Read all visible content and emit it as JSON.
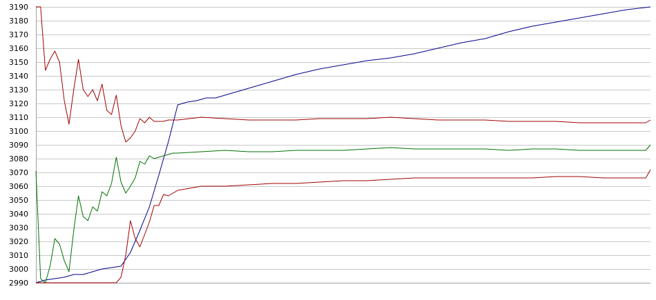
{
  "chart_data": {
    "type": "line",
    "title": "",
    "xlabel": "",
    "ylabel": "",
    "ylim": [
      2990,
      3190
    ],
    "yticks": [
      2990,
      3000,
      3010,
      3020,
      3030,
      3040,
      3050,
      3060,
      3070,
      3080,
      3090,
      3100,
      3110,
      3120,
      3130,
      3140,
      3150,
      3160,
      3170,
      3180,
      3190
    ],
    "y_tick_labels": [
      "2990",
      "3000",
      "3010",
      "3020",
      "3030",
      "3040",
      "3050",
      "3060",
      "3070",
      "3080",
      "3090",
      "3100",
      "3110",
      "3120",
      "3130",
      "3140",
      "3150",
      "3160",
      "3170",
      "3180",
      "3190"
    ],
    "grid": true,
    "x_axis_labels": false,
    "legend": "none",
    "series": [
      {
        "color": "#00008b",
        "x": [
          0,
          2,
          4,
          6,
          8,
          10,
          12,
          14,
          16,
          18,
          20,
          22,
          24,
          26,
          28,
          30,
          32,
          34,
          36,
          38,
          40,
          42,
          44,
          46,
          48,
          50,
          55,
          60,
          65,
          70,
          75,
          80,
          85,
          90,
          95,
          100,
          105,
          110,
          115,
          120,
          125,
          130
        ],
        "values": [
          2990,
          2992,
          2993,
          2994,
          2996,
          2996,
          2998,
          3000,
          3001,
          3002,
          3012,
          3028,
          3045,
          3068,
          3092,
          3119,
          3121,
          3122,
          3124,
          3124,
          3126,
          3128,
          3130,
          3132,
          3134,
          3136,
          3141,
          3145,
          3148,
          3151,
          3153,
          3156,
          3160,
          3164,
          3167,
          3172,
          3176,
          3179,
          3182,
          3185,
          3188,
          3190
        ]
      },
      {
        "color": "#a00000",
        "x": [
          0,
          1,
          2,
          3,
          4,
          5,
          6,
          7,
          8,
          9,
          10,
          11,
          12,
          13,
          14,
          15,
          16,
          17,
          18,
          19,
          20,
          21,
          22,
          23,
          24,
          25,
          26,
          27,
          28,
          29,
          30,
          35,
          40,
          45,
          50,
          55,
          60,
          65,
          70,
          75,
          80,
          85,
          90,
          95,
          100,
          105,
          110,
          115,
          120,
          125,
          129,
          130
        ],
        "values": [
          3190,
          3190,
          3144,
          3152,
          3158,
          3150,
          3122,
          3105,
          3130,
          3152,
          3130,
          3125,
          3130,
          3122,
          3134,
          3115,
          3112,
          3126,
          3104,
          3092,
          3095,
          3100,
          3109,
          3106,
          3110,
          3107,
          3107,
          3107,
          3108,
          3108,
          3108,
          3110,
          3109,
          3108,
          3108,
          3108,
          3109,
          3109,
          3109,
          3110,
          3109,
          3108,
          3108,
          3108,
          3107,
          3107,
          3107,
          3106,
          3106,
          3106,
          3106,
          3108
        ]
      },
      {
        "color": "#007000",
        "x": [
          0,
          1,
          2,
          3,
          4,
          5,
          6,
          7,
          8,
          9,
          10,
          11,
          12,
          13,
          14,
          15,
          16,
          17,
          18,
          19,
          20,
          21,
          22,
          23,
          24,
          25,
          26,
          27,
          28,
          29,
          30,
          35,
          40,
          45,
          50,
          55,
          60,
          65,
          70,
          75,
          80,
          85,
          90,
          95,
          100,
          105,
          110,
          115,
          120,
          125,
          129,
          130
        ],
        "values": [
          3071,
          2993,
          2990,
          3002,
          3022,
          3018,
          3006,
          2998,
          3028,
          3053,
          3038,
          3035,
          3045,
          3042,
          3056,
          3053,
          3062,
          3081,
          3063,
          3055,
          3060,
          3066,
          3078,
          3076,
          3082,
          3080,
          3081,
          3082,
          3083,
          3084,
          3084,
          3085,
          3086,
          3085,
          3085,
          3086,
          3086,
          3086,
          3087,
          3088,
          3087,
          3087,
          3087,
          3087,
          3086,
          3087,
          3087,
          3086,
          3086,
          3086,
          3086,
          3090
        ]
      },
      {
        "color": "#a00000",
        "x": [
          0,
          2,
          4,
          6,
          8,
          10,
          12,
          14,
          16,
          17,
          18,
          19,
          20,
          21,
          22,
          23,
          24,
          25,
          26,
          27,
          28,
          29,
          30,
          35,
          40,
          45,
          50,
          55,
          60,
          65,
          70,
          75,
          80,
          85,
          90,
          95,
          100,
          105,
          110,
          115,
          120,
          125,
          129,
          130
        ],
        "values": [
          2990,
          2990,
          2990,
          2990,
          2990,
          2990,
          2990,
          2990,
          2990,
          2990,
          2994,
          3010,
          3035,
          3022,
          3016,
          3025,
          3034,
          3046,
          3046,
          3054,
          3053,
          3055,
          3057,
          3060,
          3060,
          3061,
          3062,
          3062,
          3063,
          3064,
          3064,
          3065,
          3066,
          3066,
          3066,
          3066,
          3066,
          3066,
          3067,
          3067,
          3066,
          3066,
          3066,
          3072
        ]
      }
    ]
  }
}
